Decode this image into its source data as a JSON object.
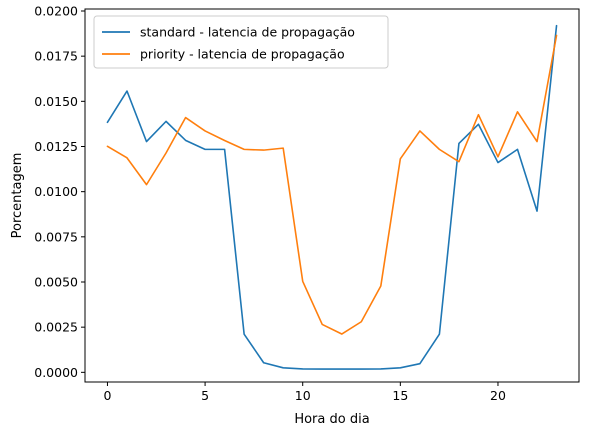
{
  "chart_data": {
    "type": "line",
    "title": "",
    "xlabel": "Hora do dia",
    "ylabel": "Porcentagem",
    "xlim": [
      -1.15,
      24.15
    ],
    "ylim": [
      -0.000535,
      0.02011
    ],
    "xticks": [
      0,
      5,
      10,
      15,
      20
    ],
    "yticks": [
      0.0,
      0.0025,
      0.005,
      0.0075,
      0.01,
      0.0125,
      0.015,
      0.0175,
      0.02
    ],
    "ytick_labels": [
      "0.0000",
      "0.0025",
      "0.0050",
      "0.0075",
      "0.0100",
      "0.0125",
      "0.0150",
      "0.0175",
      "0.0200"
    ],
    "grid": false,
    "legend_position": "upper-left",
    "x": [
      0,
      1,
      2,
      3,
      4,
      5,
      6,
      7,
      8,
      9,
      10,
      11,
      12,
      13,
      14,
      15,
      16,
      17,
      18,
      19,
      20,
      21,
      22,
      23
    ],
    "series": [
      {
        "name": "standard - latencia de propagação",
        "color": "#1f77b4",
        "values": [
          0.01384,
          0.01557,
          0.01277,
          0.01389,
          0.01284,
          0.01234,
          0.01234,
          0.00211,
          0.00053,
          0.00025,
          0.00019,
          0.00018,
          0.00018,
          0.00018,
          0.00019,
          0.00025,
          0.00048,
          0.00211,
          0.01267,
          0.01373,
          0.01161,
          0.01234,
          0.00892,
          0.01919
        ]
      },
      {
        "name": "priority - latencia de propagação",
        "color": "#ff7f0e",
        "values": [
          0.01251,
          0.01187,
          0.01039,
          0.01214,
          0.0141,
          0.01336,
          0.01283,
          0.01234,
          0.0123,
          0.01241,
          0.00504,
          0.00265,
          0.00212,
          0.0028,
          0.00478,
          0.01182,
          0.01336,
          0.01234,
          0.01166,
          0.01426,
          0.01193,
          0.01442,
          0.01277,
          0.01865
        ]
      }
    ]
  }
}
